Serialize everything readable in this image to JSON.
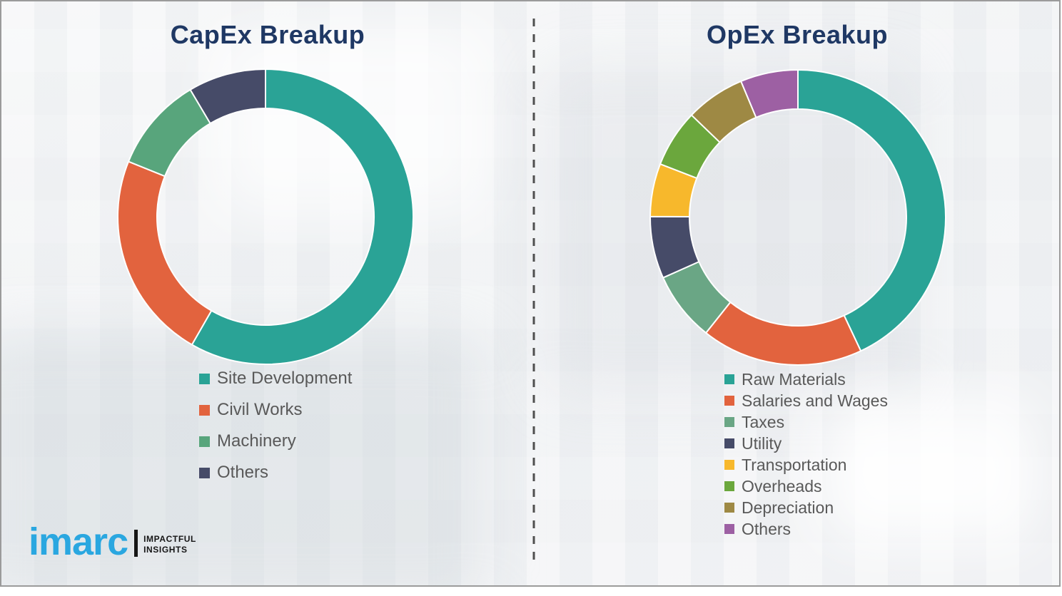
{
  "chart_data": [
    {
      "type": "pie",
      "donut": true,
      "title": "CapEx Breakup",
      "labels": [
        "Site Development",
        "Civil Works",
        "Machinery",
        "Others"
      ],
      "values": [
        58.3,
        22.8,
        10.4,
        8.5
      ],
      "colors": [
        "#2aa396",
        "#e2633e",
        "#58a57c",
        "#464b68"
      ],
      "unit": "percent",
      "start_angle_deg": 0,
      "direction": "clockwise",
      "legend_position": "below-left"
    },
    {
      "type": "pie",
      "donut": true,
      "title": "OpEx Breakup",
      "labels": [
        "Raw Materials",
        "Salaries and Wages",
        "Taxes",
        "Utility",
        "Transportation",
        "Overheads",
        "Depreciation",
        "Others"
      ],
      "values": [
        43.0,
        17.7,
        7.6,
        6.8,
        5.8,
        6.3,
        6.5,
        6.3
      ],
      "colors": [
        "#2aa396",
        "#e2633e",
        "#6aa685",
        "#464b68",
        "#f7b82c",
        "#6ba73d",
        "#9e8944",
        "#9d60a3"
      ],
      "unit": "percent",
      "start_angle_deg": 0,
      "direction": "clockwise",
      "legend_position": "below-left"
    }
  ],
  "divider": {
    "orientation": "vertical",
    "style": "dashed",
    "color": "#4f4f4f"
  },
  "branding": {
    "logo_text": "imarc",
    "tagline_line1": "IMPACTFUL",
    "tagline_line2": "INSIGHTS",
    "logo_color": "#2aa7e0"
  },
  "theme": {
    "title_color": "#1f3864",
    "legend_text_color": "#595959",
    "panel_border_color": "#9b9b9b",
    "background_color": "#f1f2f4"
  }
}
